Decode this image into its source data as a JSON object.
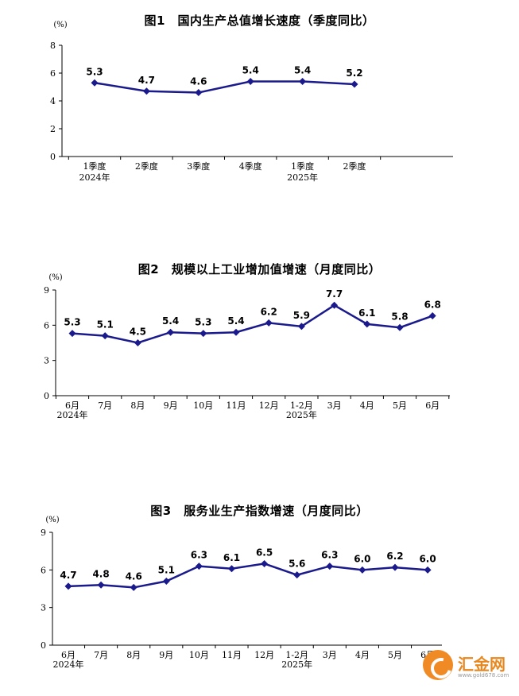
{
  "chart_data": [
    {
      "type": "line",
      "title": "图1　国内生产总值增长速度（季度同比）",
      "unit": "(%)",
      "ylim": [
        0,
        8
      ],
      "yticks": [
        "0",
        "2",
        "4",
        "6",
        "8"
      ],
      "categories": [
        "1季度",
        "2季度",
        "3季度",
        "4季度",
        "1季度",
        "2季度"
      ],
      "category_years": [
        "2024年",
        "",
        "",
        "",
        "2025年",
        ""
      ],
      "values": [
        5.3,
        4.7,
        4.6,
        5.4,
        5.4,
        5.2
      ],
      "value_labels": [
        "5.3",
        "4.7",
        "4.6",
        "5.4",
        "5.4",
        "5.2"
      ],
      "grid": false,
      "color": "#1a1a8c"
    },
    {
      "type": "line",
      "title": "图2　规模以上工业增加值增速（月度同比）",
      "unit": "(%)",
      "ylim": [
        0,
        9
      ],
      "yticks": [
        "0",
        "3",
        "6",
        "9"
      ],
      "categories": [
        "6月",
        "7月",
        "8月",
        "9月",
        "10月",
        "11月",
        "12月",
        "1-2月",
        "3月",
        "4月",
        "5月",
        "6月"
      ],
      "category_years": [
        "2024年",
        "",
        "",
        "",
        "",
        "",
        "",
        "2025年",
        "",
        "",
        "",
        ""
      ],
      "values": [
        5.3,
        5.1,
        4.5,
        5.4,
        5.3,
        5.4,
        6.2,
        5.9,
        7.7,
        6.1,
        5.8,
        6.8
      ],
      "value_labels": [
        "5.3",
        "5.1",
        "4.5",
        "5.4",
        "5.3",
        "5.4",
        "6.2",
        "5.9",
        "7.7",
        "6.1",
        "5.8",
        "6.8"
      ],
      "grid": false,
      "color": "#1a1a8c"
    },
    {
      "type": "line",
      "title": "图3　服务业生产指数增速（月度同比）",
      "unit": "(%)",
      "ylim": [
        0,
        9
      ],
      "yticks": [
        "0",
        "3",
        "6",
        "9"
      ],
      "categories": [
        "6月",
        "7月",
        "8月",
        "9月",
        "10月",
        "11月",
        "12月",
        "1-2月",
        "3月",
        "4月",
        "5月",
        "6月"
      ],
      "category_years": [
        "2024年",
        "",
        "",
        "",
        "",
        "",
        "",
        "2025年",
        "",
        "",
        "",
        ""
      ],
      "values": [
        4.7,
        4.8,
        4.6,
        5.1,
        6.3,
        6.1,
        6.5,
        5.6,
        6.3,
        6.0,
        6.2,
        6.0
      ],
      "value_labels": [
        "4.7",
        "4.8",
        "4.6",
        "5.1",
        "6.3",
        "6.1",
        "6.5",
        "5.6",
        "6.3",
        "6.0",
        "6.2",
        "6.0"
      ],
      "grid": false,
      "color": "#1a1a8c"
    }
  ],
  "watermark": {
    "brand": "汇金网",
    "url": "www.gold678.com",
    "color": "#f08a24"
  }
}
